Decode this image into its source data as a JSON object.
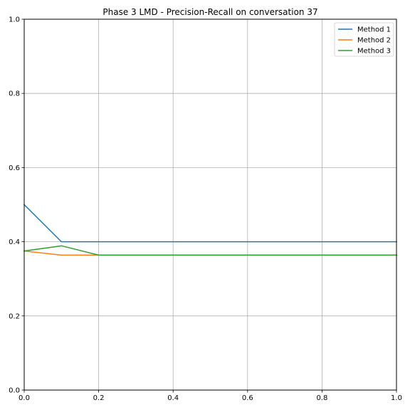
{
  "chart_data": {
    "type": "line",
    "title": "Phase 3 LMD - Precision-Recall on conversation 37",
    "xlabel": "",
    "ylabel": "",
    "xlim": [
      0,
      1
    ],
    "ylim": [
      0,
      1
    ],
    "xticks": [
      "0.0",
      "0.2",
      "0.4",
      "0.6",
      "0.8",
      "1.0"
    ],
    "yticks": [
      "0.0",
      "0.2",
      "0.4",
      "0.6",
      "0.8",
      "1.0"
    ],
    "grid": true,
    "legend_position": "top-right",
    "x": [
      0.0,
      0.1,
      0.2,
      0.3,
      0.4,
      0.5,
      0.6,
      0.7,
      0.8,
      0.9,
      1.0
    ],
    "series": [
      {
        "name": "Method 1",
        "color": "#1f77b4",
        "values": [
          0.5,
          0.4,
          0.4,
          0.4,
          0.4,
          0.4,
          0.4,
          0.4,
          0.4,
          0.4,
          0.4
        ]
      },
      {
        "name": "Method 2",
        "color": "#ff7f0e",
        "values": [
          0.375,
          0.364,
          0.364,
          0.364,
          0.364,
          0.364,
          0.364,
          0.364,
          0.364,
          0.364,
          0.364
        ]
      },
      {
        "name": "Method 3",
        "color": "#2ca02c",
        "values": [
          0.375,
          0.389,
          0.364,
          0.364,
          0.364,
          0.364,
          0.364,
          0.364,
          0.364,
          0.364,
          0.364
        ]
      }
    ]
  }
}
